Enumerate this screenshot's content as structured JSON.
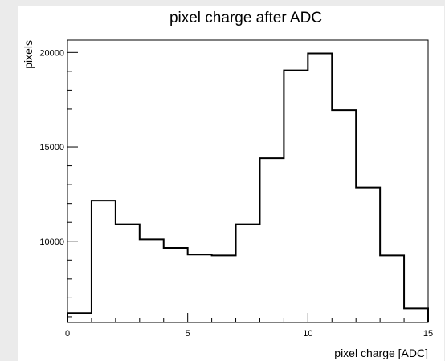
{
  "chart_data": {
    "type": "bar",
    "title": "pixel charge after ADC",
    "xlabel": "pixel charge [ADC]",
    "ylabel": "pixels",
    "bin_edges": [
      0,
      1,
      2,
      3,
      4,
      5,
      6,
      7,
      8,
      9,
      10,
      11,
      12,
      13,
      14,
      15
    ],
    "values": [
      6200,
      12150,
      10900,
      10100,
      9650,
      9300,
      9250,
      10900,
      14400,
      19050,
      19950,
      16950,
      12850,
      9250,
      6450
    ],
    "xlim": [
      0,
      15
    ],
    "ylim": [
      5700,
      20650
    ],
    "x_major_ticks": [
      {
        "value": 0,
        "label": "0"
      },
      {
        "value": 5,
        "label": "5"
      },
      {
        "value": 10,
        "label": "10"
      },
      {
        "value": 15,
        "label": "15"
      }
    ],
    "y_major_ticks": [
      {
        "value": 10000,
        "label": "10000"
      },
      {
        "value": 15000,
        "label": "15000"
      },
      {
        "value": 20000,
        "label": "20000"
      }
    ],
    "grid": false,
    "legend": "none",
    "colors": {
      "canvas_bg": "#ebebeb",
      "frame_bg": "#ffffff",
      "line": "#000000"
    }
  }
}
